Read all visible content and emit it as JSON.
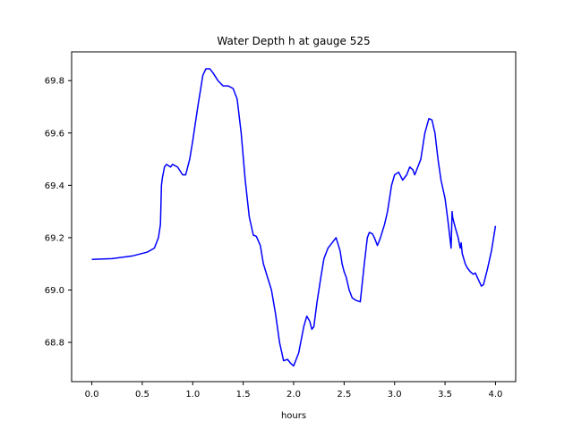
{
  "chart_data": {
    "type": "line",
    "title": "Water Depth h at gauge 525",
    "xlabel": "hours",
    "ylabel": "",
    "xlim": [
      -0.2,
      4.2
    ],
    "ylim": [
      68.65,
      69.91
    ],
    "xticks": [
      0.0,
      0.5,
      1.0,
      1.5,
      2.0,
      2.5,
      3.0,
      3.5,
      4.0
    ],
    "xtick_labels": [
      "0.0",
      "0.5",
      "1.0",
      "1.5",
      "2.0",
      "2.5",
      "3.0",
      "3.5",
      "4.0"
    ],
    "yticks": [
      68.8,
      69.0,
      69.2,
      69.4,
      69.6,
      69.8
    ],
    "ytick_labels": [
      "68.8",
      "69.0",
      "69.2",
      "69.4",
      "69.6",
      "69.8"
    ],
    "grid": false,
    "color": "#0000ff",
    "series": [
      {
        "x": [
          0.0,
          0.2,
          0.4,
          0.55,
          0.62,
          0.66,
          0.68,
          0.69,
          0.7,
          0.72,
          0.74,
          0.78,
          0.8,
          0.85,
          0.9,
          0.93,
          0.97,
          1.0,
          1.05,
          1.1,
          1.13,
          1.17,
          1.2,
          1.25,
          1.3,
          1.35,
          1.4,
          1.44,
          1.48,
          1.52,
          1.56,
          1.6,
          1.63,
          1.67,
          1.7,
          1.74,
          1.78,
          1.82,
          1.86,
          1.9,
          1.94,
          1.97,
          2.0,
          2.02,
          2.05,
          2.07,
          2.1,
          2.13,
          2.16,
          2.18,
          2.2,
          2.23,
          2.27,
          2.3,
          2.34,
          2.38,
          2.42,
          2.46,
          2.48,
          2.5,
          2.52,
          2.55,
          2.58,
          2.62,
          2.66,
          2.7,
          2.73,
          2.75,
          2.78,
          2.8,
          2.83,
          2.86,
          2.9,
          2.93,
          2.97,
          3.0,
          3.04,
          3.08,
          3.12,
          3.15,
          3.18,
          3.2,
          3.22,
          3.26,
          3.3,
          3.34,
          3.37,
          3.4,
          3.43,
          3.46,
          3.5,
          3.53,
          3.56,
          3.57,
          3.575,
          3.58,
          3.6,
          3.63,
          3.65,
          3.66,
          3.67,
          3.7,
          3.72,
          3.75,
          3.78,
          3.8,
          3.83,
          3.86,
          3.88,
          3.92,
          3.96,
          4.0
        ],
        "y": [
          69.117,
          69.12,
          69.13,
          69.145,
          69.16,
          69.2,
          69.25,
          69.4,
          69.43,
          69.47,
          69.48,
          69.47,
          69.48,
          69.47,
          69.44,
          69.44,
          69.5,
          69.57,
          69.7,
          69.82,
          69.845,
          69.845,
          69.83,
          69.8,
          69.78,
          69.78,
          69.77,
          69.73,
          69.6,
          69.42,
          69.28,
          69.21,
          69.205,
          69.17,
          69.1,
          69.05,
          69.0,
          68.91,
          68.8,
          68.73,
          68.735,
          68.72,
          68.71,
          68.73,
          68.76,
          68.8,
          68.86,
          68.9,
          68.88,
          68.85,
          68.86,
          68.95,
          69.05,
          69.12,
          69.16,
          69.18,
          69.2,
          69.15,
          69.1,
          69.07,
          69.05,
          69.0,
          68.97,
          68.96,
          68.955,
          69.1,
          69.2,
          69.22,
          69.215,
          69.2,
          69.17,
          69.2,
          69.25,
          69.3,
          69.4,
          69.44,
          69.45,
          69.42,
          69.44,
          69.47,
          69.46,
          69.44,
          69.46,
          69.5,
          69.6,
          69.655,
          69.65,
          69.6,
          69.5,
          69.42,
          69.35,
          69.26,
          69.16,
          69.3,
          69.28,
          69.27,
          69.24,
          69.2,
          69.16,
          69.18,
          69.14,
          69.1,
          69.085,
          69.07,
          69.06,
          69.065,
          69.04,
          69.015,
          69.02,
          69.08,
          69.15,
          69.245
        ]
      }
    ]
  }
}
